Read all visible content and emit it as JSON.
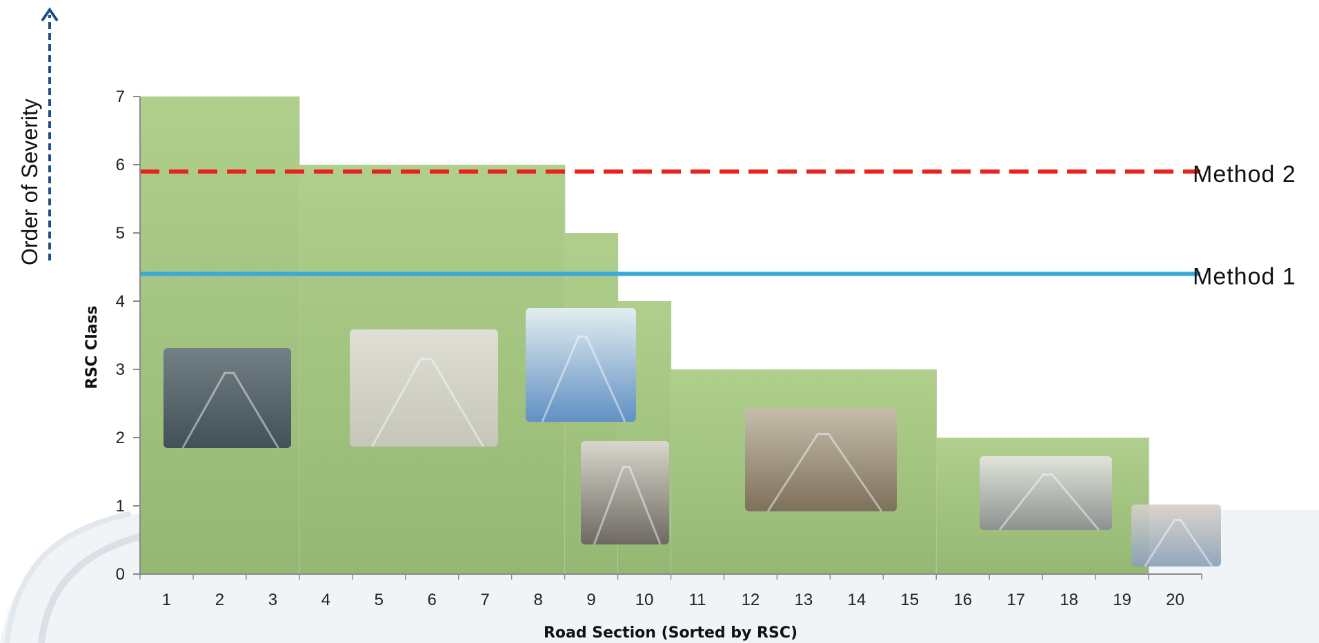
{
  "chart_data": {
    "type": "bar",
    "title": "",
    "xlabel": "Road Section (Sorted by RSC)",
    "ylabel": "RSC Class",
    "side_label": "Order of Severity",
    "categories": [
      "1",
      "2",
      "3",
      "4",
      "5",
      "6",
      "7",
      "8",
      "9",
      "10",
      "11",
      "12",
      "13",
      "14",
      "15",
      "16",
      "17",
      "18",
      "19",
      "20"
    ],
    "values": [
      7,
      7,
      7,
      6,
      6,
      6,
      6,
      6,
      5,
      4,
      3,
      3,
      3,
      3,
      3,
      2,
      2,
      2,
      2,
      0
    ],
    "ylim": [
      0,
      7
    ],
    "yticks": [
      0,
      1,
      2,
      3,
      4,
      5,
      6,
      7
    ],
    "grid": false,
    "reference_lines": [
      {
        "name": "Method 2",
        "value": 5.9,
        "style": "dashed",
        "color": "#e8231d"
      },
      {
        "name": "Method 1",
        "value": 4.4,
        "style": "solid",
        "color": "#3aa8d8"
      }
    ],
    "colors": {
      "bar": "#a9c987",
      "bar_dark": "#8fb46c",
      "axis": "#888888",
      "arrow": "#1f4e8c"
    },
    "photos": [
      {
        "name": "ice-photo",
        "note": "icy road",
        "colors": [
          "#3a4654",
          "#6e7a86"
        ]
      },
      {
        "name": "packed-snow-photo",
        "colors": [
          "#c9c6c0",
          "#e4e1dc"
        ]
      },
      {
        "name": "snow-forest-photo",
        "colors": [
          "#5b8cc9",
          "#e8f0f8"
        ]
      },
      {
        "name": "snowy-curve-photo",
        "colors": [
          "#6a6260",
          "#ddd8d4"
        ]
      },
      {
        "name": "slush-road-photo",
        "colors": [
          "#7b6a58",
          "#c8bcae"
        ]
      },
      {
        "name": "hillside-road-photo",
        "colors": [
          "#8a8e90",
          "#e6e6e2"
        ]
      },
      {
        "name": "dry-road-photo",
        "colors": [
          "#8aa0b8",
          "#d8d2c8"
        ]
      }
    ]
  }
}
